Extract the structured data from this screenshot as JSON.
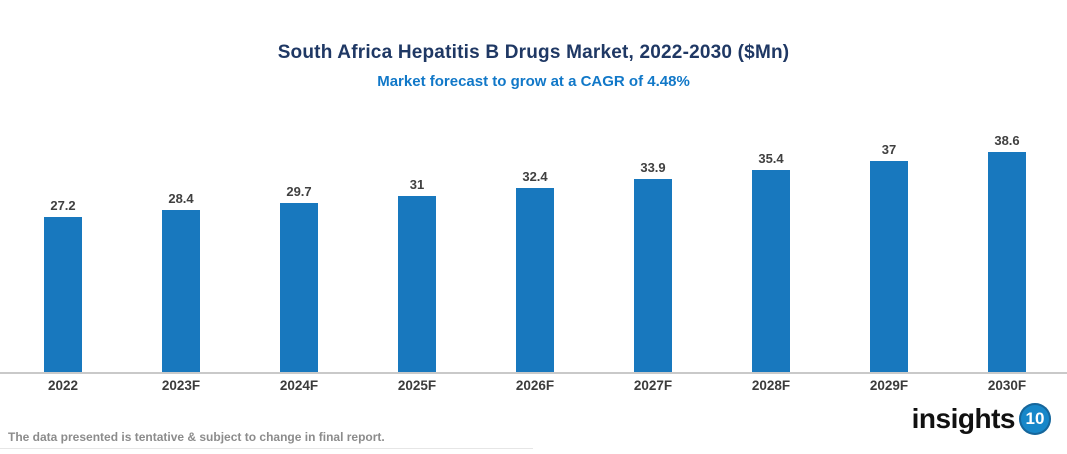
{
  "header": {
    "title": "South Africa Hepatitis B Drugs Market, 2022-2030 ($Mn)",
    "subtitle": "Market forecast to grow at a CAGR of 4.48%"
  },
  "chart_data": {
    "type": "bar",
    "categories": [
      "2022",
      "2023F",
      "2024F",
      "2025F",
      "2026F",
      "2027F",
      "2028F",
      "2029F",
      "2030F"
    ],
    "values": [
      27.2,
      28.4,
      29.7,
      31,
      32.4,
      33.9,
      35.4,
      37,
      38.6
    ],
    "title": "South Africa Hepatitis B Drugs Market, 2022-2030 ($Mn)",
    "subtitle": "Market forecast to grow at a CAGR of 4.48%",
    "xlabel": "",
    "ylabel": "",
    "ylim": [
      0,
      40
    ],
    "grid": false,
    "legend": false,
    "data_labels": true,
    "bar_color": "#1878BE"
  },
  "colors": {
    "bar": "#1878BE",
    "title": "#1F3864",
    "subtitle": "#1178C8",
    "axis_line": "#C9C9C9",
    "value_label": "#404040",
    "x_label": "#3B3B3B",
    "footer": "#8C8C8C",
    "logo_badge": "#1787C9"
  },
  "footer": {
    "disclaimer": "The data presented is tentative & subject to change in final report."
  },
  "logo": {
    "text": "insights",
    "badge": "10"
  }
}
